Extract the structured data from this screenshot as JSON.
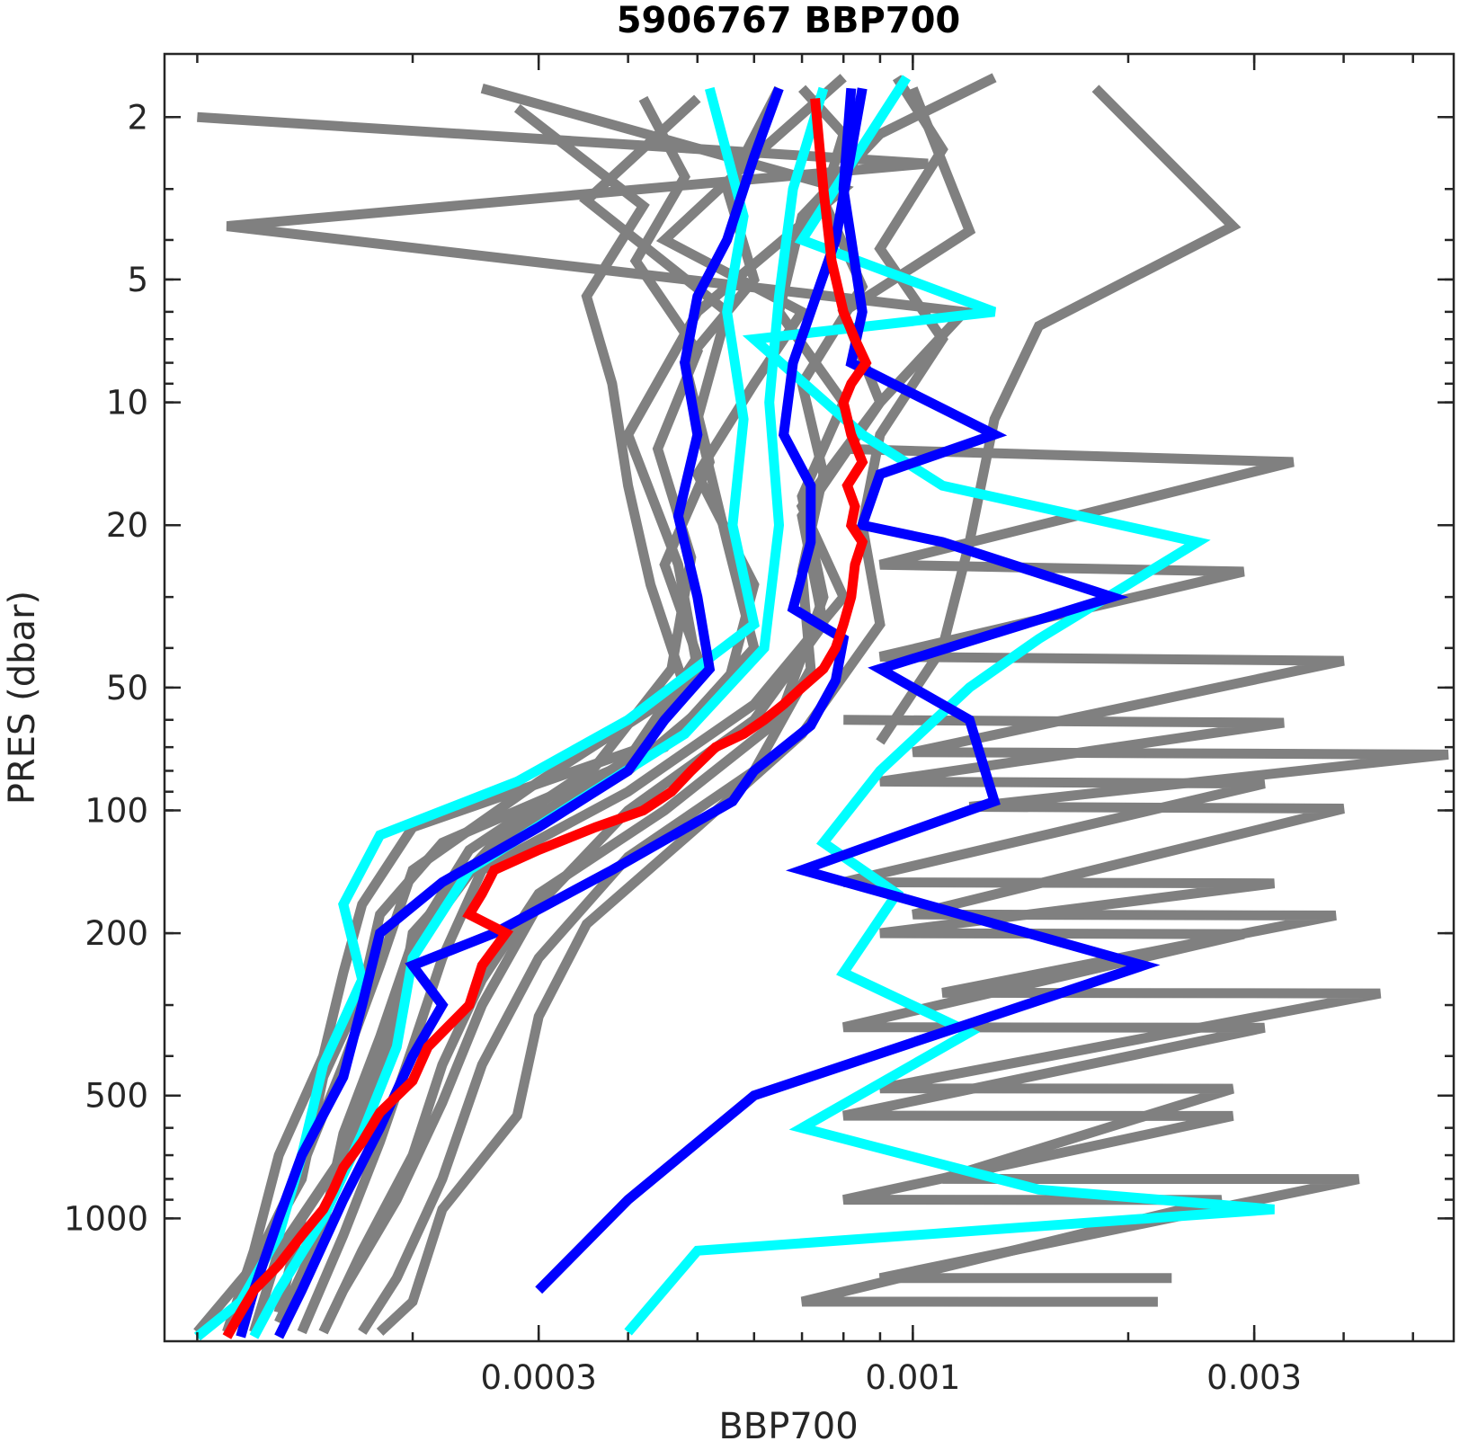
{
  "chart_data": {
    "type": "line",
    "title": "5906767 BBP700",
    "xlabel": "BBP700",
    "ylabel": "PRES (dbar)",
    "xscale": "log",
    "yscale": "log",
    "y_reversed": true,
    "xlim": [
      9e-05,
      0.0057
    ],
    "ylim": [
      1.4,
      2000
    ],
    "xticks": [
      {
        "value": 0.0003,
        "label": "0.0003"
      },
      {
        "value": 0.001,
        "label": "0.001"
      },
      {
        "value": 0.003,
        "label": "0.003"
      }
    ],
    "yticks": [
      {
        "value": 2,
        "label": "2"
      },
      {
        "value": 5,
        "label": "5"
      },
      {
        "value": 10,
        "label": "10"
      },
      {
        "value": 20,
        "label": "20"
      },
      {
        "value": 50,
        "label": "50"
      },
      {
        "value": 100,
        "label": "100"
      },
      {
        "value": 200,
        "label": "200"
      },
      {
        "value": 500,
        "label": "500"
      },
      {
        "value": 1000,
        "label": "1000"
      }
    ],
    "grid": false,
    "legend": "none",
    "colors": {
      "others": "#808080",
      "cyan": "#00ffff",
      "blue": "#0000ff",
      "red": "#ff0000",
      "axis": "#262626"
    },
    "series": [
      {
        "color": "#808080",
        "pres": [
          1.7,
          3,
          6,
          12,
          25,
          45,
          70,
          110,
          170,
          250,
          400,
          700,
          1200,
          1900
        ],
        "bbp": [
          0.00025,
          0.0008,
          0.0005,
          0.0004,
          0.00047,
          0.0005,
          0.00042,
          0.0002,
          0.00017,
          0.00016,
          0.00015,
          0.00013,
          0.00012,
          0.00011
        ]
      },
      {
        "color": "#808080",
        "pres": [
          1.8,
          3.2,
          6,
          11,
          22,
          40,
          70,
          120,
          180,
          280,
          450,
          800,
          1300,
          1900
        ],
        "bbp": [
          0.0005,
          0.00035,
          0.00055,
          0.0005,
          0.00055,
          0.0006,
          0.00045,
          0.00022,
          0.00018,
          0.00017,
          0.00015,
          0.00014,
          0.00012,
          0.00011
        ]
      },
      {
        "color": "#808080",
        "pres": [
          1.6,
          2.5,
          4,
          6,
          9,
          15,
          28,
          50,
          80,
          130,
          220,
          400,
          700,
          1200,
          1900
        ],
        "bbp": [
          0.0008,
          0.0006,
          0.00045,
          0.0007,
          0.0006,
          0.0005,
          0.0006,
          0.00055,
          0.0004,
          0.00025,
          0.0002,
          0.00018,
          0.00016,
          0.00013,
          0.00012
        ]
      },
      {
        "color": "#808080",
        "pres": [
          1.7,
          3.8,
          6,
          10,
          18,
          30,
          55,
          90,
          140,
          230,
          380,
          650,
          1100,
          1900
        ],
        "bbp": [
          0.001,
          0.0012,
          0.0008,
          0.0009,
          0.0007,
          0.0008,
          0.0006,
          0.0004,
          0.00025,
          0.00022,
          0.0002,
          0.00018,
          0.00016,
          0.00014
        ]
      },
      {
        "color": "#808080",
        "pres": [
          1.6,
          2.2,
          3.5,
          6,
          10,
          17,
          30,
          60,
          100,
          160,
          260,
          420,
          700,
          1200,
          1900
        ],
        "bbp": [
          0.0013,
          0.0009,
          0.0007,
          0.00065,
          0.0008,
          0.0007,
          0.00075,
          0.00065,
          0.00045,
          0.0003,
          0.00025,
          0.00022,
          0.0002,
          0.00017,
          0.00015
        ]
      },
      {
        "color": "#808080",
        "pres": [
          1.9,
          3.3,
          5.5,
          9,
          16,
          28,
          50,
          85,
          140,
          240,
          420,
          750,
          1300,
          1900
        ],
        "bbp": [
          0.00028,
          0.00042,
          0.00035,
          0.00038,
          0.0004,
          0.00043,
          0.00048,
          0.0003,
          0.0002,
          0.00018,
          0.00016,
          0.00014,
          0.00012,
          0.0001
        ]
      },
      {
        "color": "#808080",
        "pres": [
          1.7,
          3,
          5,
          8,
          14,
          25,
          42,
          75,
          120,
          200,
          350,
          600,
          1000,
          1700
        ],
        "bbp": [
          0.00065,
          0.00055,
          0.0006,
          0.00048,
          0.00052,
          0.00045,
          0.0005,
          0.0004,
          0.00026,
          0.0002,
          0.00019,
          0.00017,
          0.00014,
          0.00013
        ]
      },
      {
        "color": "#808080",
        "pres": [
          1.6,
          2.4,
          4.2,
          7,
          12,
          20,
          35,
          65,
          110,
          190,
          320,
          560,
          950,
          1600,
          1900
        ],
        "bbp": [
          0.00095,
          0.0011,
          0.0009,
          0.0011,
          0.0009,
          0.00085,
          0.0009,
          0.0007,
          0.0005,
          0.00035,
          0.0003,
          0.00028,
          0.00022,
          0.0002,
          0.00018
        ]
      },
      {
        "color": "#808080",
        "pres": [
          1.8,
          2.8,
          4.5,
          7.5,
          13,
          24,
          45,
          78,
          125,
          210,
          360,
          620,
          1050,
          1800
        ],
        "bbp": [
          0.00042,
          0.00048,
          0.00041,
          0.0005,
          0.00044,
          0.00049,
          0.00046,
          0.00036,
          0.00024,
          0.0002,
          0.00018,
          0.00016,
          0.00015,
          0.00013
        ]
      },
      {
        "color": "#808080",
        "pres": [
          1.7,
          2.2,
          3.2,
          5.2,
          9,
          15,
          26,
          45,
          80,
          130,
          230,
          420,
          800,
          1400,
          1900
        ],
        "bbp": [
          0.0007,
          0.0008,
          0.00075,
          0.00085,
          0.0007,
          0.00075,
          0.0007,
          0.00072,
          0.0006,
          0.0004,
          0.0003,
          0.00025,
          0.00022,
          0.00019,
          0.00017
        ]
      },
      {
        "color": "#808080",
        "pres": [
          2,
          2.6,
          3.7,
          6,
          10,
          19,
          35,
          60,
          100,
          170,
          300,
          520,
          900,
          1500,
          1900
        ],
        "bbp": [
          0.0001,
          0.00105,
          0.00011,
          0.00118,
          0.0009,
          0.0007,
          0.00075,
          0.0006,
          0.0004,
          0.0003,
          0.00025,
          0.00022,
          0.00019,
          0.00016,
          0.00015
        ]
      },
      {
        "color": "#808080",
        "pres": [
          1.7,
          3.7,
          6.5,
          11,
          22,
          40,
          68
        ],
        "bbp": [
          0.0018,
          0.0028,
          0.0015,
          0.0013,
          0.0012,
          0.0011,
          0.0009
        ]
      },
      {
        "color": "#808080",
        "pres": [
          13,
          14,
          25,
          26,
          42,
          43,
          72,
          73,
          98,
          99,
          180,
          181,
          280,
          281,
          480,
          481,
          800,
          801,
          1400,
          1401
        ],
        "bbp": [
          0.0008,
          0.0034,
          0.0009,
          0.0029,
          0.0009,
          0.004,
          0.001,
          0.0056,
          0.0012,
          0.004,
          0.001,
          0.0039,
          0.0011,
          0.0045,
          0.0009,
          0.0028,
          0.0011,
          0.0042,
          0.0009,
          0.0023
        ]
      },
      {
        "color": "#808080",
        "pres": [
          60,
          61,
          85,
          86,
          150,
          151,
          200,
          201,
          340,
          341,
          560,
          561,
          900,
          901,
          1600,
          1601
        ],
        "bbp": [
          0.0008,
          0.0033,
          0.0009,
          0.0031,
          0.0008,
          0.0032,
          0.0009,
          0.0029,
          0.0008,
          0.0031,
          0.0008,
          0.0028,
          0.0008,
          0.0027,
          0.0007,
          0.0022
        ]
      },
      {
        "color": "#00ffff",
        "pres": [
          1.7,
          3.5,
          6,
          11,
          20,
          35,
          60,
          85,
          115,
          170,
          260,
          420,
          700,
          1100,
          1600,
          1950
        ],
        "bbp": [
          0.00052,
          0.00058,
          0.00055,
          0.00058,
          0.00056,
          0.0006,
          0.0004,
          0.00028,
          0.00018,
          0.00016,
          0.00017,
          0.00015,
          0.00014,
          0.00013,
          0.000115,
          0.0001
        ]
      },
      {
        "color": "#00ffff",
        "pres": [
          1.7,
          3,
          5.5,
          10,
          20,
          40,
          65,
          95,
          140,
          230,
          380,
          620,
          1000,
          1500,
          1950
        ],
        "bbp": [
          0.00075,
          0.00068,
          0.00065,
          0.00063,
          0.00065,
          0.00062,
          0.00048,
          0.00034,
          0.00024,
          0.0002,
          0.00019,
          0.00017,
          0.00015,
          0.00013,
          0.00012
        ]
      },
      {
        "color": "#00ffff",
        "pres": [
          1.6,
          4,
          6,
          7,
          12,
          16,
          22,
          38,
          50,
          80,
          120,
          160,
          250,
          350,
          600,
          850,
          950,
          1200,
          1900
        ],
        "bbp": [
          0.00098,
          0.0007,
          0.0013,
          0.0006,
          0.00085,
          0.0011,
          0.0025,
          0.0015,
          0.0012,
          0.0009,
          0.00075,
          0.00095,
          0.0008,
          0.0012,
          0.0007,
          0.0015,
          0.0032,
          0.0005,
          0.0004
        ]
      },
      {
        "color": "#0000ff",
        "pres": [
          1.7,
          2.5,
          4,
          5.5,
          8,
          12,
          19,
          30,
          45,
          60,
          80,
          110,
          150,
          200,
          300,
          450,
          700,
          1000,
          1500,
          1950
        ],
        "bbp": [
          0.00065,
          0.0006,
          0.00055,
          0.0005,
          0.00048,
          0.0005,
          0.00047,
          0.0005,
          0.00052,
          0.00045,
          0.0004,
          0.0003,
          0.00022,
          0.00018,
          0.00017,
          0.00016,
          0.00014,
          0.00013,
          0.00012,
          0.000115
        ]
      },
      {
        "color": "#0000ff",
        "pres": [
          1.7,
          4,
          8,
          12,
          16,
          22,
          32,
          38,
          48,
          62,
          80,
          95,
          140,
          200,
          240,
          300,
          400,
          600,
          900,
          1500,
          1950
        ],
        "bbp": [
          0.00085,
          0.00078,
          0.00068,
          0.00066,
          0.00072,
          0.00072,
          0.00068,
          0.0008,
          0.00078,
          0.00072,
          0.0006,
          0.00056,
          0.00038,
          0.00026,
          0.0002,
          0.00022,
          0.0002,
          0.00018,
          0.00016,
          0.00014,
          0.00013
        ]
      },
      {
        "color": "#0000ff",
        "pres": [
          1.7,
          3,
          6,
          8,
          12,
          15,
          20,
          22,
          30,
          45,
          60,
          95,
          140,
          240,
          500,
          900,
          1500
        ],
        "bbp": [
          0.00082,
          0.0008,
          0.00085,
          0.00082,
          0.0013,
          0.0009,
          0.00085,
          0.0011,
          0.0019,
          0.0009,
          0.0012,
          0.0013,
          0.0007,
          0.0021,
          0.0006,
          0.0004,
          0.0003
        ]
      },
      {
        "color": "#ff0000",
        "pres": [
          1.8,
          3,
          4.5,
          6,
          7,
          8,
          9,
          10,
          12,
          14,
          16,
          18,
          20,
          22,
          25,
          30,
          35,
          40,
          45,
          50,
          55,
          60,
          65,
          70,
          80,
          90,
          100,
          110,
          125,
          140,
          160,
          180,
          200,
          240,
          300,
          380,
          460,
          550,
          650,
          750,
          850,
          950,
          1100,
          1300,
          1500,
          1700,
          1950
        ],
        "bbp": [
          0.00073,
          0.00075,
          0.00077,
          0.0008,
          0.00083,
          0.00086,
          0.00082,
          0.0008,
          0.00082,
          0.00085,
          0.00081,
          0.00083,
          0.00082,
          0.00085,
          0.00083,
          0.00082,
          0.0008,
          0.00078,
          0.00075,
          0.0007,
          0.00066,
          0.00062,
          0.00058,
          0.00053,
          0.00049,
          0.00046,
          0.00042,
          0.00036,
          0.0003,
          0.00026,
          0.00025,
          0.00024,
          0.00027,
          0.00025,
          0.00024,
          0.00021,
          0.0002,
          0.00018,
          0.00017,
          0.00016,
          0.000155,
          0.00015,
          0.00014,
          0.00013,
          0.00012,
          0.000115,
          0.00011
        ]
      }
    ]
  }
}
